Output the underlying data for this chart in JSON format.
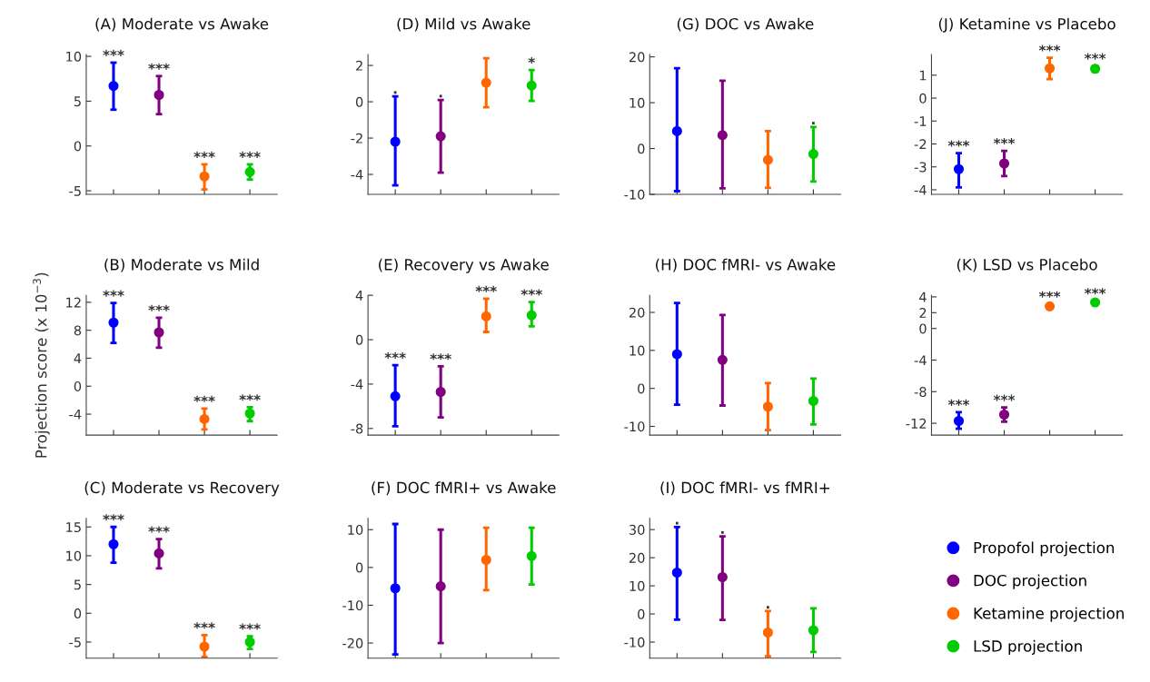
{
  "chart_data": [
    {
      "type": "scatter",
      "title": "(A) Moderate vs Awake",
      "categories": [
        null,
        null,
        null,
        null
      ],
      "ylim": [
        -5.4,
        10.2
      ],
      "yticks": [
        -5,
        0,
        5,
        10
      ],
      "marker": "circle",
      "legend": "bottom right",
      "series": [
        {
          "name": "Propofol projection",
          "color": "#0000ff",
          "values": [
            6.7,
            null,
            null,
            null
          ],
          "errors": [
            [
              4.05,
              9.3
            ],
            null,
            null,
            null
          ],
          "value_labels": [
            "***",
            null,
            null,
            null
          ]
        },
        {
          "name": "DOC projection",
          "color": "#800080",
          "values": [
            null,
            5.7,
            null,
            null
          ],
          "errors": [
            null,
            [
              3.55,
              7.8
            ],
            null,
            null
          ],
          "value_labels": [
            null,
            "***",
            null,
            null
          ]
        },
        {
          "name": "Ketamine projection",
          "color": "#ff6600",
          "values": [
            null,
            null,
            -3.4,
            null
          ],
          "errors": [
            null,
            null,
            [
              -4.85,
              -2.05
            ],
            null
          ],
          "value_labels": [
            null,
            null,
            "***",
            null
          ]
        },
        {
          "name": "LSD projection",
          "color": "#00cc00",
          "values": [
            null,
            null,
            null,
            -2.9
          ],
          "errors": [
            null,
            null,
            null,
            [
              -3.75,
              -2.05
            ]
          ],
          "value_labels": [
            null,
            null,
            null,
            "***"
          ]
        }
      ]
    },
    {
      "type": "scatter",
      "title": "(D) Mild vs Awake",
      "categories": [
        null,
        null,
        null,
        null
      ],
      "ylim": [
        -5.1,
        2.6
      ],
      "yticks": [
        -4,
        -2,
        0,
        2
      ],
      "marker": "circle",
      "series": [
        {
          "color": "#0000ff",
          "values": [
            -2.2,
            null,
            null,
            null
          ],
          "errors": [
            [
              -4.6,
              0.3
            ],
            null,
            null,
            null
          ],
          "value_labels": [
            ".",
            null,
            null,
            null
          ]
        },
        {
          "color": "#800080",
          "values": [
            null,
            -1.9,
            null,
            null
          ],
          "errors": [
            null,
            [
              -3.9,
              0.1
            ],
            null,
            null
          ],
          "value_labels": [
            null,
            ".",
            null,
            null
          ]
        },
        {
          "color": "#ff6600",
          "values": [
            null,
            null,
            1.05,
            null
          ],
          "errors": [
            null,
            null,
            [
              -0.3,
              2.4
            ],
            null
          ]
        },
        {
          "color": "#00cc00",
          "values": [
            null,
            null,
            null,
            0.9
          ],
          "errors": [
            null,
            null,
            null,
            [
              0.05,
              1.75
            ]
          ],
          "value_labels": [
            null,
            null,
            null,
            "*"
          ]
        }
      ]
    },
    {
      "type": "scatter",
      "title": "(G) DOC vs Awake",
      "categories": [
        null,
        null,
        null,
        null
      ],
      "ylim": [
        -10,
        20.5
      ],
      "yticks": [
        -10,
        0,
        10,
        20
      ],
      "marker": "circle",
      "series": [
        {
          "color": "#0000ff",
          "values": [
            3.8,
            null,
            null,
            null
          ],
          "errors": [
            [
              -9.3,
              17.5
            ],
            null,
            null,
            null
          ]
        },
        {
          "color": "#800080",
          "values": [
            null,
            2.9,
            null,
            null
          ],
          "errors": [
            null,
            [
              -8.7,
              14.8
            ],
            null,
            null
          ]
        },
        {
          "color": "#ff6600",
          "values": [
            null,
            null,
            -2.5,
            null
          ],
          "errors": [
            null,
            null,
            [
              -8.6,
              3.8
            ],
            null
          ]
        },
        {
          "color": "#00cc00",
          "values": [
            null,
            null,
            null,
            -1.2
          ],
          "errors": [
            null,
            null,
            null,
            [
              -7.2,
              4.7
            ]
          ],
          "value_labels": [
            null,
            null,
            null,
            "."
          ]
        }
      ]
    },
    {
      "type": "scatter",
      "title": "(J) Ketamine vs Placebo",
      "categories": [
        null,
        null,
        null,
        null
      ],
      "ylim": [
        -4.2,
        1.9
      ],
      "yticks": [
        -4,
        -3,
        -2,
        -1,
        0,
        1
      ],
      "marker": "circle",
      "series": [
        {
          "color": "#0000ff",
          "values": [
            -3.1,
            null,
            null,
            null
          ],
          "errors": [
            [
              -3.9,
              -2.4
            ],
            null,
            null,
            null
          ],
          "value_labels": [
            "***",
            null,
            null,
            null
          ]
        },
        {
          "color": "#800080",
          "values": [
            null,
            -2.85,
            null,
            null
          ],
          "errors": [
            null,
            [
              -3.4,
              -2.3
            ],
            null,
            null
          ],
          "value_labels": [
            null,
            "***",
            null,
            null
          ]
        },
        {
          "color": "#ff6600",
          "values": [
            null,
            null,
            1.3,
            null
          ],
          "errors": [
            null,
            null,
            [
              0.83,
              1.76
            ],
            null
          ],
          "value_labels": [
            null,
            null,
            "***",
            null
          ]
        },
        {
          "color": "#00cc00",
          "values": [
            null,
            null,
            null,
            1.28
          ],
          "errors": [
            null,
            null,
            null,
            [
              1.15,
              1.4
            ]
          ],
          "value_labels": [
            null,
            null,
            null,
            "***"
          ]
        }
      ]
    },
    {
      "type": "scatter",
      "title": "(B) Moderate vs Mild",
      "ylabel": "Projection score (x 10$^{−3}$)",
      "categories": [
        null,
        null,
        null,
        null
      ],
      "ylim": [
        -7,
        13
      ],
      "yticks": [
        -4,
        0,
        4,
        8,
        12
      ],
      "marker": "circle",
      "series": [
        {
          "color": "#0000ff",
          "values": [
            9.1,
            null,
            null,
            null
          ],
          "errors": [
            [
              6.2,
              11.9
            ],
            null,
            null,
            null
          ],
          "value_labels": [
            "***",
            null,
            null,
            null
          ]
        },
        {
          "color": "#800080",
          "values": [
            null,
            7.7,
            null,
            null
          ],
          "errors": [
            null,
            [
              5.5,
              9.8
            ],
            null,
            null
          ],
          "value_labels": [
            null,
            "***",
            null,
            null
          ]
        },
        {
          "color": "#ff6600",
          "values": [
            null,
            null,
            -4.7,
            null
          ],
          "errors": [
            null,
            null,
            [
              -6.2,
              -3.2
            ],
            null
          ],
          "value_labels": [
            null,
            null,
            "***",
            null
          ]
        },
        {
          "color": "#00cc00",
          "values": [
            null,
            null,
            null,
            -3.9
          ],
          "errors": [
            null,
            null,
            null,
            [
              -5.0,
              -3.0
            ]
          ],
          "value_labels": [
            null,
            null,
            null,
            "***"
          ]
        }
      ]
    },
    {
      "type": "scatter",
      "title": "(E) Recovery vs Awake",
      "categories": [
        null,
        null,
        null,
        null
      ],
      "ylim": [
        -8.6,
        4
      ],
      "yticks": [
        -8,
        -4,
        0,
        4
      ],
      "marker": "circle",
      "series": [
        {
          "color": "#0000ff",
          "values": [
            -5.1,
            null,
            null,
            null
          ],
          "errors": [
            [
              -7.8,
              -2.3
            ],
            null,
            null,
            null
          ],
          "value_labels": [
            "***",
            null,
            null,
            null
          ]
        },
        {
          "color": "#800080",
          "values": [
            null,
            -4.7,
            null,
            null
          ],
          "errors": [
            null,
            [
              -7.0,
              -2.4
            ],
            null,
            null
          ],
          "value_labels": [
            null,
            "***",
            null,
            null
          ]
        },
        {
          "color": "#ff6600",
          "values": [
            null,
            null,
            2.1,
            null
          ],
          "errors": [
            null,
            null,
            [
              0.7,
              3.7
            ],
            null
          ],
          "value_labels": [
            null,
            null,
            "***",
            null
          ]
        },
        {
          "color": "#00cc00",
          "values": [
            null,
            null,
            null,
            2.2
          ],
          "errors": [
            null,
            null,
            null,
            [
              1.2,
              3.4
            ]
          ],
          "value_labels": [
            null,
            null,
            null,
            "***"
          ]
        }
      ]
    },
    {
      "type": "scatter",
      "title": "(H) DOC fMRI- vs Awake",
      "categories": [
        null,
        null,
        null,
        null
      ],
      "ylim": [
        -12.3,
        24.5
      ],
      "yticks": [
        -10,
        0,
        10,
        20
      ],
      "marker": "circle",
      "series": [
        {
          "color": "#0000ff",
          "values": [
            9,
            null,
            null,
            null
          ],
          "errors": [
            [
              -4.3,
              22.5
            ],
            null,
            null,
            null
          ]
        },
        {
          "color": "#800080",
          "values": [
            null,
            7.5,
            null,
            null
          ],
          "errors": [
            null,
            [
              -4.5,
              19.3
            ],
            null,
            null
          ]
        },
        {
          "color": "#ff6600",
          "values": [
            null,
            null,
            -4.8,
            null
          ],
          "errors": [
            null,
            null,
            [
              -11,
              1.4
            ],
            null
          ]
        },
        {
          "color": "#00cc00",
          "values": [
            null,
            null,
            null,
            -3.3
          ],
          "errors": [
            null,
            null,
            null,
            [
              -9.5,
              2.6
            ]
          ]
        }
      ]
    },
    {
      "type": "scatter",
      "title": "(K) LSD vs Placebo",
      "categories": [
        null,
        null,
        null,
        null
      ],
      "ylim": [
        -13.5,
        4.2
      ],
      "yticks": [
        -12,
        -8,
        -4,
        0,
        2,
        4
      ],
      "marker": "circle",
      "series": [
        {
          "color": "#0000ff",
          "values": [
            -11.7,
            null,
            null,
            null
          ],
          "errors": [
            [
              -12.7,
              -10.6
            ],
            null,
            null,
            null
          ],
          "value_labels": [
            "***",
            null,
            null,
            null
          ]
        },
        {
          "color": "#800080",
          "values": [
            null,
            -10.9,
            null,
            null
          ],
          "errors": [
            null,
            [
              -11.8,
              -10.0
            ],
            null,
            null
          ],
          "value_labels": [
            null,
            "***",
            null,
            null
          ]
        },
        {
          "color": "#ff6600",
          "values": [
            null,
            null,
            2.8,
            null
          ],
          "errors": [
            null,
            null,
            [
              2.5,
              3.1
            ],
            null
          ],
          "value_labels": [
            null,
            null,
            "***",
            null
          ]
        },
        {
          "color": "#00cc00",
          "values": [
            null,
            null,
            null,
            3.3
          ],
          "errors": [
            null,
            null,
            null,
            [
              3.1,
              3.5
            ]
          ],
          "value_labels": [
            null,
            null,
            null,
            "***"
          ]
        }
      ]
    },
    {
      "type": "scatter",
      "title": "(C) Moderate vs Recovery",
      "categories": [
        null,
        null,
        null,
        null
      ],
      "ylim": [
        -7.8,
        16.5
      ],
      "yticks": [
        -5,
        0,
        5,
        10,
        15
      ],
      "marker": "circle",
      "series": [
        {
          "color": "#0000ff",
          "values": [
            12,
            null,
            null,
            null
          ],
          "errors": [
            [
              8.8,
              15
            ],
            null,
            null,
            null
          ],
          "value_labels": [
            "***",
            null,
            null,
            null
          ]
        },
        {
          "color": "#800080",
          "values": [
            null,
            10.4,
            null,
            null
          ],
          "errors": [
            null,
            [
              7.8,
              12.9
            ],
            null,
            null
          ],
          "value_labels": [
            null,
            "***",
            null,
            null
          ]
        },
        {
          "color": "#ff6600",
          "values": [
            null,
            null,
            -5.8,
            null
          ],
          "errors": [
            null,
            null,
            [
              -7.6,
              -3.8
            ],
            null
          ],
          "value_labels": [
            null,
            null,
            "***",
            null
          ]
        },
        {
          "color": "#00cc00",
          "values": [
            null,
            null,
            null,
            -5.0
          ],
          "errors": [
            null,
            null,
            null,
            [
              -6.2,
              -4.0
            ]
          ],
          "value_labels": [
            null,
            null,
            null,
            "***"
          ]
        }
      ]
    },
    {
      "type": "scatter",
      "title": "(F) DOC fMRI+ vs Awake",
      "categories": [
        null,
        null,
        null,
        null
      ],
      "ylim": [
        -24,
        13
      ],
      "yticks": [
        -20,
        -10,
        0,
        10
      ],
      "marker": "circle",
      "series": [
        {
          "color": "#0000ff",
          "values": [
            -5.5,
            null,
            null,
            null
          ],
          "errors": [
            [
              -23,
              11.5
            ],
            null,
            null,
            null
          ]
        },
        {
          "color": "#800080",
          "values": [
            null,
            -5,
            null,
            null
          ],
          "errors": [
            null,
            [
              -20,
              10
            ],
            null,
            null
          ]
        },
        {
          "color": "#ff6600",
          "values": [
            null,
            null,
            2,
            null
          ],
          "errors": [
            null,
            null,
            [
              -6,
              10.5
            ],
            null
          ]
        },
        {
          "color": "#00cc00",
          "values": [
            null,
            null,
            null,
            3
          ],
          "errors": [
            null,
            null,
            null,
            [
              -4.5,
              10.5
            ]
          ]
        }
      ]
    },
    {
      "type": "scatter",
      "title": "(I) DOC fMRI- vs fMRI+",
      "categories": [
        null,
        null,
        null,
        null
      ],
      "ylim": [
        -15.7,
        34
      ],
      "yticks": [
        -10,
        0,
        10,
        20,
        30
      ],
      "marker": "circle",
      "series": [
        {
          "color": "#0000ff",
          "values": [
            14.7,
            null,
            null,
            null
          ],
          "errors": [
            [
              -2,
              30.9
            ],
            null,
            null,
            null
          ],
          "value_labels": [
            ".",
            null,
            null,
            null
          ]
        },
        {
          "color": "#800080",
          "values": [
            null,
            13.1,
            null,
            null
          ],
          "errors": [
            null,
            [
              -2.1,
              27.6
            ],
            null,
            null
          ],
          "value_labels": [
            null,
            ".",
            null,
            null
          ]
        },
        {
          "color": "#ff6600",
          "values": [
            null,
            null,
            -6.6,
            null
          ],
          "errors": [
            null,
            null,
            [
              -15,
              1
            ],
            null
          ],
          "value_labels": [
            null,
            null,
            ".",
            null
          ]
        },
        {
          "color": "#00cc00",
          "values": [
            null,
            null,
            null,
            -5.8
          ],
          "errors": [
            null,
            null,
            null,
            [
              -13.5,
              2
            ]
          ]
        }
      ]
    }
  ]
}
